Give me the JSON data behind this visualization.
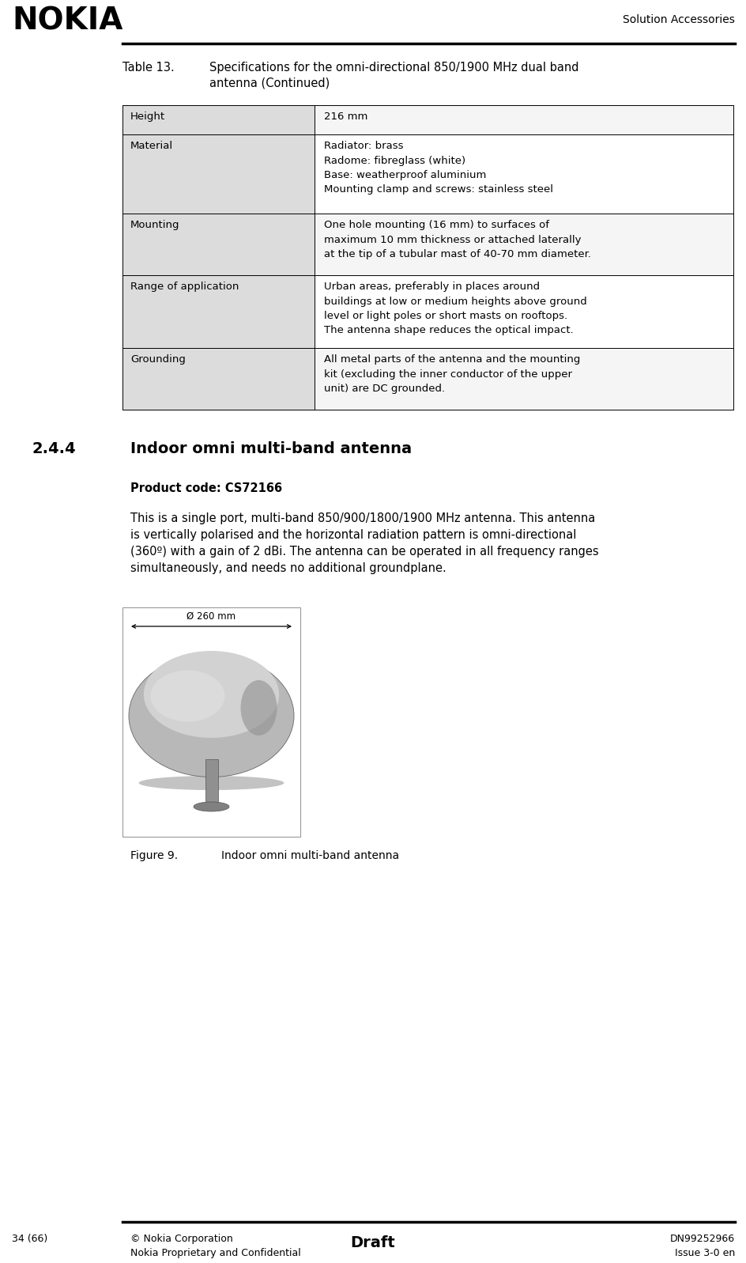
{
  "page_width": 9.45,
  "page_height": 15.97,
  "bg_color": "#ffffff",
  "nokia_logo_text": "NOKIA",
  "header_right_text": "Solution Accessories",
  "footer_left_text": "34 (66)",
  "footer_center_text": "Draft",
  "footer_right_text": "DN99252966",
  "footer_left2_text": "© Nokia Corporation",
  "footer_left3_text": "Nokia Proprietary and Confidential",
  "footer_right2_text": "Issue 3-0 en",
  "table_caption_label": "Table 13.",
  "table_caption_text": "Specifications for the omni-directional 850/1900 MHz dual band\nantenna (Continued)",
  "table_rows": [
    {
      "label": "Height",
      "value": "216 mm"
    },
    {
      "label": "Material",
      "value": "Radiator: brass\nRadome: fibreglass (white)\nBase: weatherproof aluminium\nMounting clamp and screws: stainless steel"
    },
    {
      "label": "Mounting",
      "value": "One hole mounting (16 mm) to surfaces of\nmaximum 10 mm thickness or attached laterally\nat the tip of a tubular mast of 40-70 mm diameter."
    },
    {
      "label": "Range of application",
      "value": "Urban areas, preferably in places around\nbuildings at low or medium heights above ground\nlevel or light poles or short masts on rooftops.\nThe antenna shape reduces the optical impact."
    },
    {
      "label": "Grounding",
      "value": "All metal parts of the antenna and the mounting\nkit (excluding the inner conductor of the upper\nunit) are DC grounded."
    }
  ],
  "section_number": "2.4.4",
  "section_title": "Indoor omni multi-band antenna",
  "product_code_label": "Product code: CS72166",
  "body_text_lines": [
    "This is a single port, multi-band 850/900/1800/1900 MHz antenna. This antenna",
    "is vertically polarised and the horizontal radiation pattern is omni-directional",
    "(360º) with a gain of 2 dBi. The antenna can be operated in all frequency ranges",
    "simultaneously, and needs no additional groundplane."
  ],
  "figure_caption_label": "Figure 9.",
  "figure_caption_text": "Indoor omni multi-band antenna",
  "figure_dimension_text": "Ø 260 mm"
}
